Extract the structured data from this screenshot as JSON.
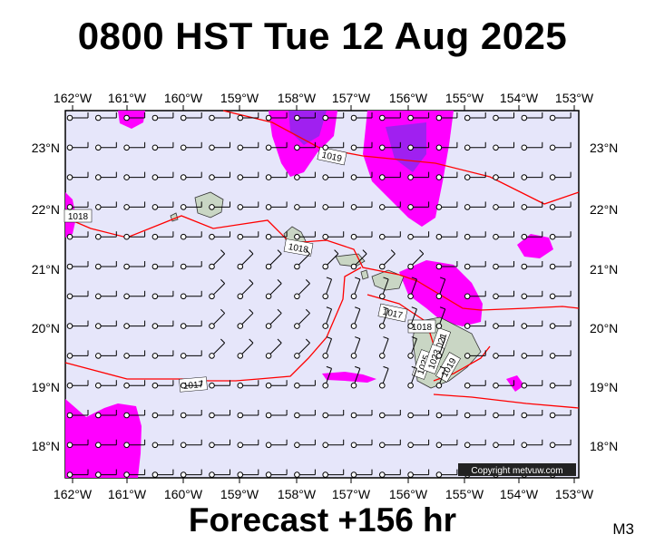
{
  "title": "0800 HST Tue 12 Aug 2025",
  "footer": "Forecast +156 hr",
  "model_label": "M3",
  "copyright": "Copyright metvuw.com",
  "lon_labels": [
    "162°W",
    "161°W",
    "160°W",
    "159°W",
    "158°W",
    "157°W",
    "156°W",
    "155°W",
    "154°W",
    "153°W"
  ],
  "lat_labels": [
    "23°N",
    "22°N",
    "21°N",
    "20°N",
    "19°N",
    "18°N"
  ],
  "isobar_labels": [
    "1019",
    "1018",
    "1018",
    "1017",
    "1018",
    "1021",
    "1025",
    "1023",
    "1019",
    "1017"
  ],
  "colors": {
    "ocean": "#e6e6fa",
    "precip_light": "#ff00ff",
    "precip_heavy": "#a020f0",
    "isobar": "#ff0000",
    "land": "#c8d8c0"
  },
  "map_region": {
    "lon_range": [
      "162°W",
      "153°W"
    ],
    "lat_range": [
      "17.5°N",
      "23.6°N"
    ]
  }
}
